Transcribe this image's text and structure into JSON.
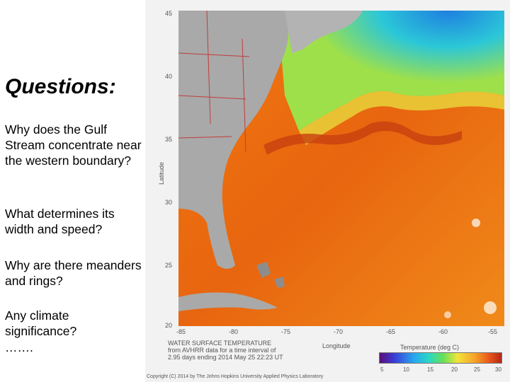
{
  "slide": {
    "title": "Questions:",
    "questions": [
      "Why does the Gulf Stream concentrate near the western boundary?",
      "What determines its width and speed?",
      "Why are there meanders and rings?",
      "Any climate significance?",
      "……."
    ]
  },
  "map": {
    "lat_ticks": [
      "45",
      "40",
      "35",
      "30",
      "25",
      "20"
    ],
    "lon_ticks": [
      "-85",
      "-80",
      "-75",
      "-70",
      "-65",
      "-60",
      "-55"
    ],
    "ylabel": "Latitude",
    "xlabel": "Longitude",
    "caption_lines": [
      "WATER SURFACE TEMPERATURE",
      "from AVHRR data for a time interval of",
      "2.95 days ending 2014 May 25 22:23 UT"
    ],
    "colorbar_label": "Temperature (deg C)",
    "colorbar_ticks": [
      "5",
      "10",
      "15",
      "20",
      "25",
      "30"
    ],
    "copyright": "Copyright (C) 2014 by The Johns Hopkins University Applied Physics Laboratory",
    "colors": {
      "land": "#a9a9a9",
      "ocean_warm": "#ea6a12",
      "ocean_cool": "#2fb7e6"
    }
  }
}
